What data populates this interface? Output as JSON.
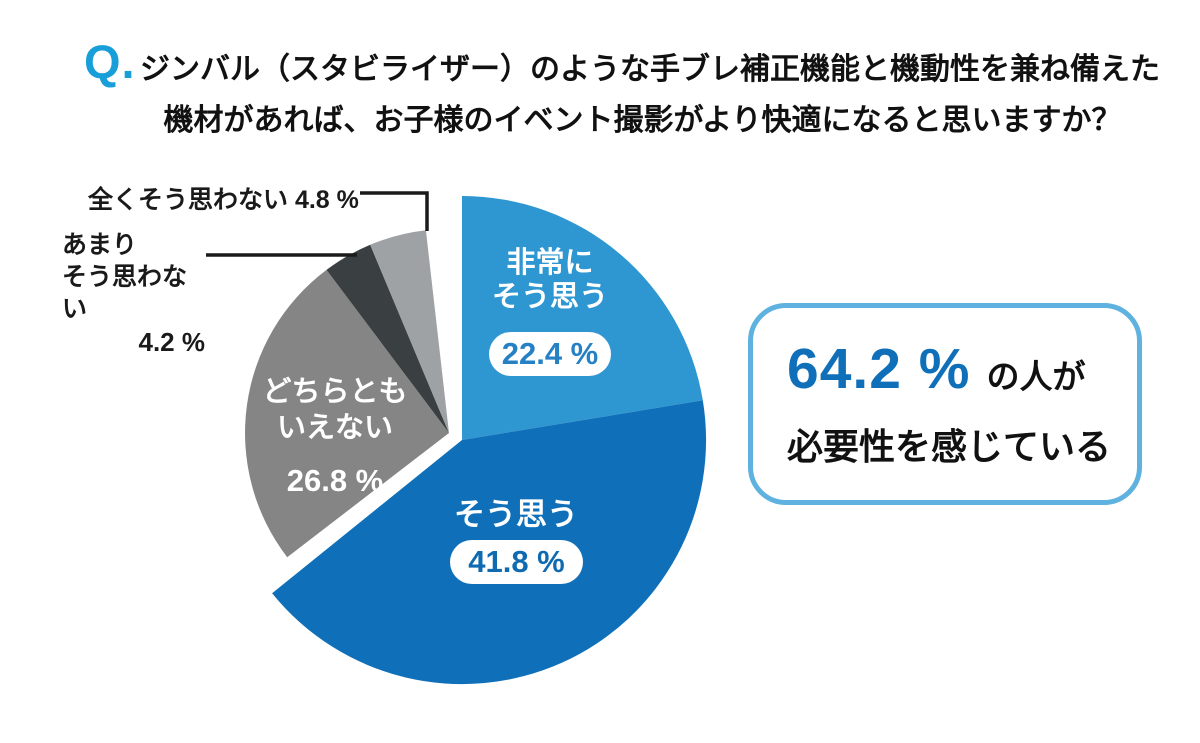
{
  "question": {
    "q_mark": "Q.",
    "line1": "ジンバル（スタビライザー）のような手ブレ補正機能と機動性を兼ね備えた",
    "line2": "機材があれば、お子様のイベント撮影がより快適になると思いますか？"
  },
  "chart_data": {
    "type": "pie",
    "title": "ジンバル（スタビライザー）のような手ブレ補正機能と機動性を兼ね備えた機材があれば、お子様のイベント撮影がより快適になると思いますか？",
    "unit": "%",
    "start_angle": "top",
    "direction": "clockwise",
    "legend_position": "none",
    "slices": [
      {
        "key": "strongly-agree",
        "label": "非常にそう思う",
        "value": 22.4,
        "color": "#2E96D0",
        "group": "agree"
      },
      {
        "key": "agree",
        "label": "そう思う",
        "value": 41.8,
        "color": "#0F70B9",
        "group": "agree"
      },
      {
        "key": "neutral",
        "label": "どちらともいえない",
        "value": 26.8,
        "color": "#858585",
        "group": "other"
      },
      {
        "key": "slightly-disagree",
        "label": "あまりそう思わない",
        "value": 4.2,
        "color": "#3A3F42",
        "group": "other"
      },
      {
        "key": "strongly-disagree",
        "label": "全くそう思わない",
        "value": 4.8,
        "color": "#9EA2A5",
        "group": "other"
      }
    ]
  },
  "pie_labels": {
    "strongly_agree": {
      "name": "非常に\nそう思う",
      "pct": "22.4 %"
    },
    "agree": {
      "name": "そう思う",
      "pct": "41.8 %"
    },
    "neutral": {
      "name": "どちらとも\nいえない",
      "pct": "26.8 %"
    },
    "slightly_disagree": {
      "name": "あまり\nそう思わない",
      "pct": "4.2 %"
    },
    "strongly_disagree": {
      "label_with_pct": "全くそう思わない 4.8 %"
    }
  },
  "callout": {
    "highlight": "64.2 %",
    "suffix": "の人が",
    "line2": "必要性を感じている",
    "accent_color": "#0F70B9",
    "border_color": "#5FB2DF"
  },
  "colors": {
    "q_mark": "#189ED9",
    "pill_text_strongly_agree": "#2581C4",
    "pill_text_agree": "#0F6BB1",
    "leader_line": "#1A1A1A"
  }
}
